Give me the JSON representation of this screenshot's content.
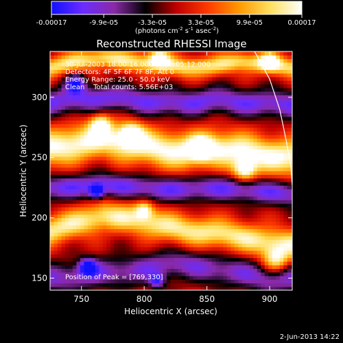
{
  "chart_data": {
    "type": "heatmap",
    "title": "Reconstructed RHESSI Image",
    "xlabel": "Heliocentric X (arcsec)",
    "ylabel": "Heliocentric Y (arcsec)",
    "xlim": [
      725,
      918
    ],
    "ylim": [
      140,
      338
    ],
    "x_ticks": [
      750,
      800,
      850,
      900
    ],
    "y_ticks": [
      150,
      200,
      250,
      300
    ],
    "colorbar": {
      "ticks": [
        "-0.00017",
        "-9.9e-05",
        "-3.3e-05",
        "3.3e-05",
        "9.9e-05",
        "0.00017"
      ],
      "unit_parts": [
        "(photons cm",
        "-2",
        " s",
        "-1",
        " asec",
        "-2",
        ")"
      ],
      "range": [
        -0.00017,
        0.00017
      ],
      "colors": [
        "#1010ff",
        "#6a2cff",
        "#8a2aa8",
        "#000000",
        "#c00000",
        "#ff3a00",
        "#ff9a00",
        "#ffe060",
        "#ffffff"
      ]
    },
    "annotations": [
      "30-Jul-2003 18:00:16.000 to 18:05:12.000",
      "Detectors: 4F 5F 6F 7F 8F, Att 0",
      "Energy Range: 25.0 - 50.0 keV",
      "Clean    Total counts: 5.56E+03"
    ],
    "peak_label": "Position of Peak = [769,330]",
    "limb": [
      [
        888,
        338
      ],
      [
        900,
        315
      ],
      [
        908,
        290
      ],
      [
        913,
        265
      ],
      [
        917,
        242
      ],
      [
        918,
        227
      ]
    ],
    "emission_bands": [
      {
        "y": [
          258,
          262,
          266,
          262,
          258,
          255,
          258,
          256,
          252,
          250
        ],
        "amplitude": 1.0,
        "width": 15
      },
      {
        "y": [
          190,
          196,
          202,
          200,
          195,
          190,
          188,
          185,
          180,
          178
        ],
        "amplitude": 0.85,
        "width": 12
      },
      {
        "y": [
          325,
          330,
          333,
          330,
          328,
          325,
          326,
          330,
          328,
          325
        ],
        "amplitude": 0.8,
        "width": 8
      }
    ],
    "negative_bands": [
      {
        "y": [
          225,
          226,
          228,
          226,
          224,
          224,
          225,
          224,
          222,
          220
        ],
        "amplitude": 0.7,
        "width": 10
      },
      {
        "y": [
          296,
          298,
          300,
          298,
          296,
          295,
          298,
          296,
          295,
          294
        ],
        "amplitude": 0.7,
        "width": 11
      },
      {
        "y": [
          150,
          152,
          155,
          156,
          160,
          162,
          158,
          155,
          150,
          150
        ],
        "amplitude": 0.6,
        "width": 12
      }
    ],
    "hotspots": [
      {
        "x": 905,
        "y": 165,
        "value": 0.8,
        "size": 10
      },
      {
        "x": 880,
        "y": 240,
        "value": 0.95,
        "size": 9
      },
      {
        "x": 845,
        "y": 258,
        "value": 0.95,
        "size": 9
      },
      {
        "x": 790,
        "y": 270,
        "value": 0.9,
        "size": 9
      },
      {
        "x": 765,
        "y": 278,
        "value": 0.85,
        "size": 8
      },
      {
        "x": 800,
        "y": 207,
        "value": 0.75,
        "size": 7
      },
      {
        "x": 900,
        "y": 330,
        "value": 0.8,
        "size": 7
      },
      {
        "x": 812,
        "y": 334,
        "value": 0.75,
        "size": 8
      },
      {
        "x": 762,
        "y": 222,
        "value": -0.85,
        "size": 6
      },
      {
        "x": 745,
        "y": 312,
        "value": -0.85,
        "size": 8
      },
      {
        "x": 755,
        "y": 160,
        "value": -0.8,
        "size": 7
      },
      {
        "x": 810,
        "y": 148,
        "value": -0.7,
        "size": 6
      }
    ]
  },
  "footer_date": "2-Jun-2013 14:22"
}
